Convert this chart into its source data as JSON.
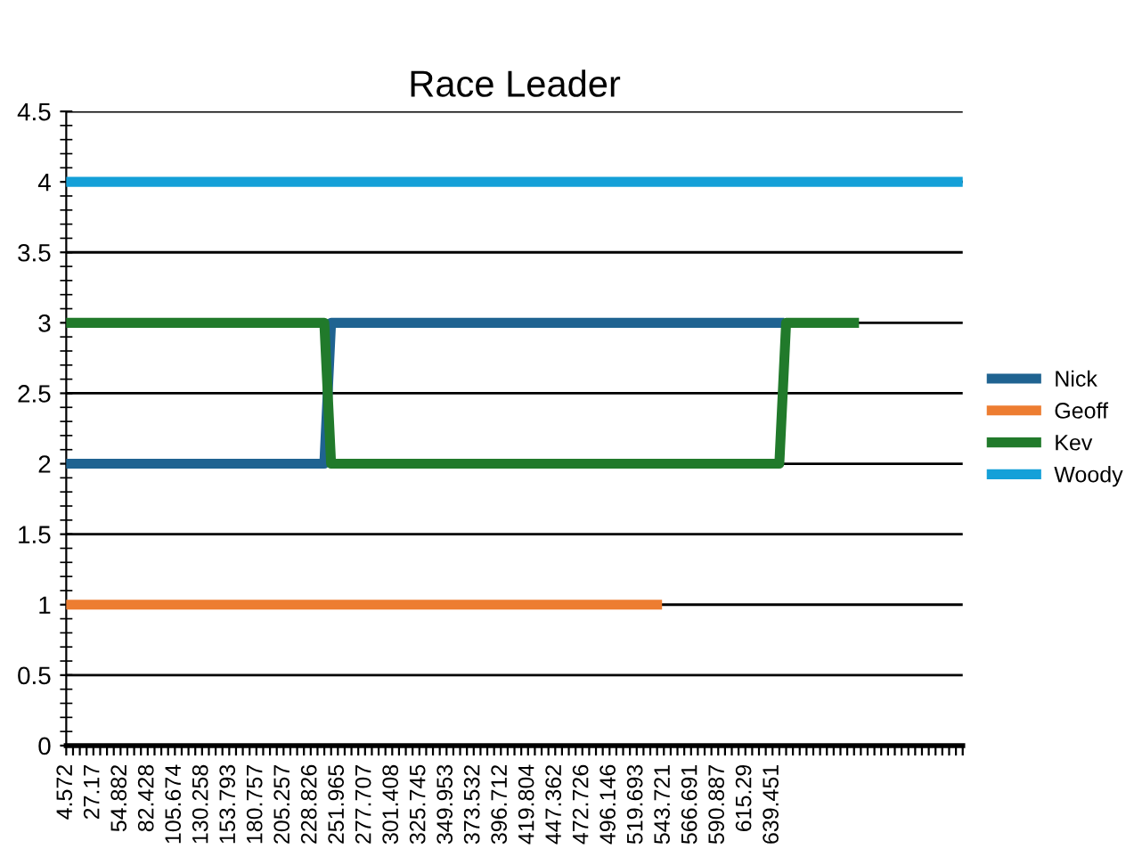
{
  "chart_data": {
    "type": "line",
    "title": "Race Leader",
    "categories": [
      "4.572",
      null,
      null,
      null,
      "27.17",
      null,
      null,
      null,
      "54.882",
      null,
      null,
      null,
      "82.428",
      null,
      null,
      null,
      "105.674",
      null,
      null,
      null,
      "130.258",
      null,
      null,
      null,
      "153.793",
      null,
      null,
      null,
      "180.757",
      null,
      null,
      null,
      "205.257",
      null,
      null,
      null,
      "228.826",
      null,
      null,
      null,
      "251.965",
      null,
      null,
      null,
      "277.707",
      null,
      null,
      null,
      "301.408",
      null,
      null,
      null,
      "325.745",
      null,
      null,
      null,
      "349.953",
      null,
      null,
      null,
      "373.532",
      null,
      null,
      null,
      "396.712",
      null,
      null,
      null,
      "419.804",
      null,
      null,
      null,
      "447.362",
      null,
      null,
      null,
      "472.726",
      null,
      null,
      null,
      "496.146",
      null,
      null,
      null,
      "519.693",
      null,
      null,
      null,
      "543.721",
      null,
      null,
      null,
      "566.691",
      null,
      null,
      null,
      "590.887",
      null,
      null,
      null,
      "615.29",
      null,
      null,
      null,
      "639.451",
      null,
      null,
      null,
      null,
      null,
      null,
      null,
      null,
      null,
      null,
      null,
      null,
      null,
      null,
      null,
      null,
      null,
      null,
      null,
      null,
      null,
      null,
      null,
      null,
      null,
      null,
      null,
      null
    ],
    "series": [
      {
        "name": "Nick",
        "color": "#1f6391",
        "values": [
          2,
          2,
          2,
          2,
          2,
          2,
          2,
          2,
          2,
          2,
          2,
          2,
          2,
          2,
          2,
          2,
          2,
          2,
          2,
          2,
          2,
          2,
          2,
          2,
          2,
          2,
          2,
          2,
          2,
          2,
          2,
          2,
          2,
          2,
          2,
          2,
          2,
          2,
          2,
          3,
          3,
          3,
          3,
          3,
          3,
          3,
          3,
          3,
          3,
          3,
          3,
          3,
          3,
          3,
          3,
          3,
          3,
          3,
          3,
          3,
          3,
          3,
          3,
          3,
          3,
          3,
          3,
          3,
          3,
          3,
          3,
          3,
          3,
          3,
          3,
          3,
          3,
          3,
          3,
          3,
          3,
          3,
          3,
          3,
          3,
          3,
          3,
          3,
          3,
          3,
          3,
          3,
          3,
          3,
          3,
          3,
          3,
          3,
          3,
          3,
          3,
          3,
          3,
          3,
          3,
          3,
          null,
          null,
          null,
          null,
          null,
          null,
          null,
          null,
          null,
          null,
          null,
          null,
          null,
          null,
          null,
          null,
          null,
          null,
          null,
          null,
          null,
          null,
          null,
          null,
          null,
          null,
          null
        ]
      },
      {
        "name": "Geoff",
        "color": "#ed7d31",
        "values": [
          1,
          1,
          1,
          1,
          1,
          1,
          1,
          1,
          1,
          1,
          1,
          1,
          1,
          1,
          1,
          1,
          1,
          1,
          1,
          1,
          1,
          1,
          1,
          1,
          1,
          1,
          1,
          1,
          1,
          1,
          1,
          1,
          1,
          1,
          1,
          1,
          1,
          1,
          1,
          1,
          1,
          1,
          1,
          1,
          1,
          1,
          1,
          1,
          1,
          1,
          1,
          1,
          1,
          1,
          1,
          1,
          1,
          1,
          1,
          1,
          1,
          1,
          1,
          1,
          1,
          1,
          1,
          1,
          1,
          1,
          1,
          1,
          1,
          1,
          1,
          1,
          1,
          1,
          1,
          1,
          1,
          1,
          1,
          1,
          1,
          1,
          1,
          1,
          null,
          null,
          null,
          null,
          null,
          null,
          null,
          null,
          null,
          null,
          null,
          null,
          null,
          null,
          null,
          null,
          null,
          null,
          null,
          null,
          null,
          null,
          null,
          null,
          null,
          null,
          null,
          null,
          null,
          null,
          null,
          null,
          null,
          null,
          null,
          null,
          null,
          null,
          null,
          null,
          null,
          null,
          null,
          null,
          null
        ]
      },
      {
        "name": "Kev",
        "color": "#217a2b",
        "values": [
          3,
          3,
          3,
          3,
          3,
          3,
          3,
          3,
          3,
          3,
          3,
          3,
          3,
          3,
          3,
          3,
          3,
          3,
          3,
          3,
          3,
          3,
          3,
          3,
          3,
          3,
          3,
          3,
          3,
          3,
          3,
          3,
          3,
          3,
          3,
          3,
          3,
          3,
          3,
          2,
          2,
          2,
          2,
          2,
          2,
          2,
          2,
          2,
          2,
          2,
          2,
          2,
          2,
          2,
          2,
          2,
          2,
          2,
          2,
          2,
          2,
          2,
          2,
          2,
          2,
          2,
          2,
          2,
          2,
          2,
          2,
          2,
          2,
          2,
          2,
          2,
          2,
          2,
          2,
          2,
          2,
          2,
          2,
          2,
          2,
          2,
          2,
          2,
          2,
          2,
          2,
          2,
          2,
          2,
          2,
          2,
          2,
          2,
          2,
          2,
          2,
          2,
          2,
          2,
          2,
          2,
          3,
          3,
          3,
          3,
          3,
          3,
          3,
          3,
          3,
          3,
          3,
          null,
          null,
          null,
          null,
          null,
          null,
          null,
          null,
          null,
          null,
          null,
          null,
          null,
          null,
          null,
          null
        ]
      },
      {
        "name": "Woody",
        "color": "#14a0d8",
        "values": [
          4,
          4,
          4,
          4,
          4,
          4,
          4,
          4,
          4,
          4,
          4,
          4,
          4,
          4,
          4,
          4,
          4,
          4,
          4,
          4,
          4,
          4,
          4,
          4,
          4,
          4,
          4,
          4,
          4,
          4,
          4,
          4,
          4,
          4,
          4,
          4,
          4,
          4,
          4,
          4,
          4,
          4,
          4,
          4,
          4,
          4,
          4,
          4,
          4,
          4,
          4,
          4,
          4,
          4,
          4,
          4,
          4,
          4,
          4,
          4,
          4,
          4,
          4,
          4,
          4,
          4,
          4,
          4,
          4,
          4,
          4,
          4,
          4,
          4,
          4,
          4,
          4,
          4,
          4,
          4,
          4,
          4,
          4,
          4,
          4,
          4,
          4,
          4,
          4,
          4,
          4,
          4,
          4,
          4,
          4,
          4,
          4,
          4,
          4,
          4,
          4,
          4,
          4,
          4,
          4,
          4,
          4,
          4,
          4,
          4,
          4,
          4,
          4,
          4,
          4,
          4,
          4,
          4,
          4,
          4,
          4,
          4,
          4,
          4,
          4,
          4,
          4,
          4,
          4,
          4,
          4,
          4,
          4
        ]
      }
    ],
    "ylim": [
      0,
      4.5
    ],
    "yticks": [
      0,
      {
        "value": 0.5,
        "label": "0.5"
      },
      1,
      {
        "value": 1.5,
        "label": "1.5"
      },
      2,
      {
        "value": 2.5,
        "label": "2.5"
      },
      3,
      {
        "value": 3.5,
        "label": "3.5"
      },
      4,
      {
        "value": 4.5,
        "label": "4.5"
      }
    ],
    "grid": "y",
    "legend": "right",
    "line_style": "solid"
  }
}
